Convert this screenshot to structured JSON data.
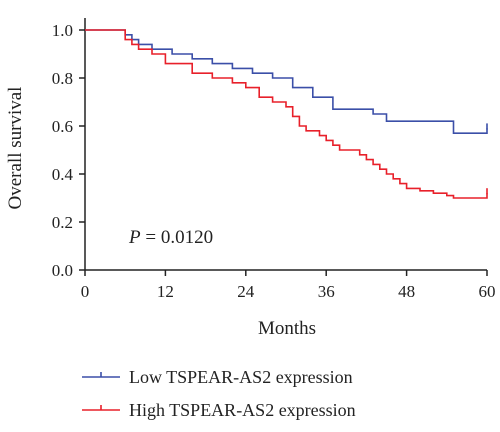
{
  "chart_data": {
    "type": "line",
    "title": "",
    "xlabel": "Months",
    "ylabel": "Overall survival",
    "xlim": [
      0,
      60
    ],
    "ylim": [
      0,
      1.05
    ],
    "xticks": [
      0,
      12,
      24,
      36,
      48,
      60
    ],
    "xtick_labels": [
      "0",
      "12",
      "24",
      "36",
      "48",
      "60"
    ],
    "yticks": [
      0,
      0.2,
      0.4,
      0.6,
      0.8,
      1.0
    ],
    "ytick_labels": [
      "0.0",
      "0.2",
      "0.4",
      "0.6",
      "0.8",
      "1.0"
    ],
    "grid": false,
    "legend_position": "bottom",
    "annotation": {
      "italic": "P",
      "rest": " = 0.0120"
    },
    "series": [
      {
        "name": "Low TSPEAR-AS2 expression",
        "color": "#3b4fa8",
        "x": [
          0,
          6,
          7,
          8,
          10,
          13,
          16,
          19,
          22,
          25,
          28,
          31,
          34,
          37,
          43,
          45,
          55,
          60
        ],
        "y": [
          1.0,
          0.98,
          0.96,
          0.94,
          0.92,
          0.9,
          0.88,
          0.86,
          0.84,
          0.82,
          0.8,
          0.76,
          0.72,
          0.67,
          0.65,
          0.62,
          0.57,
          0.59
        ],
        "censor_x": [
          60
        ]
      },
      {
        "name": "High TSPEAR-AS2 expression",
        "color": "#e8202a",
        "x": [
          0,
          6,
          7,
          8,
          10,
          12,
          16,
          19,
          22,
          24,
          26,
          28,
          30,
          31,
          32,
          33,
          35,
          36,
          37,
          38,
          41,
          42,
          43,
          44,
          45,
          46,
          47,
          48,
          50,
          52,
          54,
          55,
          60
        ],
        "y": [
          1.0,
          0.96,
          0.94,
          0.92,
          0.9,
          0.86,
          0.82,
          0.8,
          0.78,
          0.76,
          0.72,
          0.7,
          0.68,
          0.64,
          0.6,
          0.58,
          0.56,
          0.54,
          0.52,
          0.5,
          0.48,
          0.46,
          0.44,
          0.42,
          0.4,
          0.38,
          0.36,
          0.34,
          0.33,
          0.32,
          0.31,
          0.3,
          0.32
        ],
        "censor_x": [
          60
        ]
      }
    ]
  }
}
